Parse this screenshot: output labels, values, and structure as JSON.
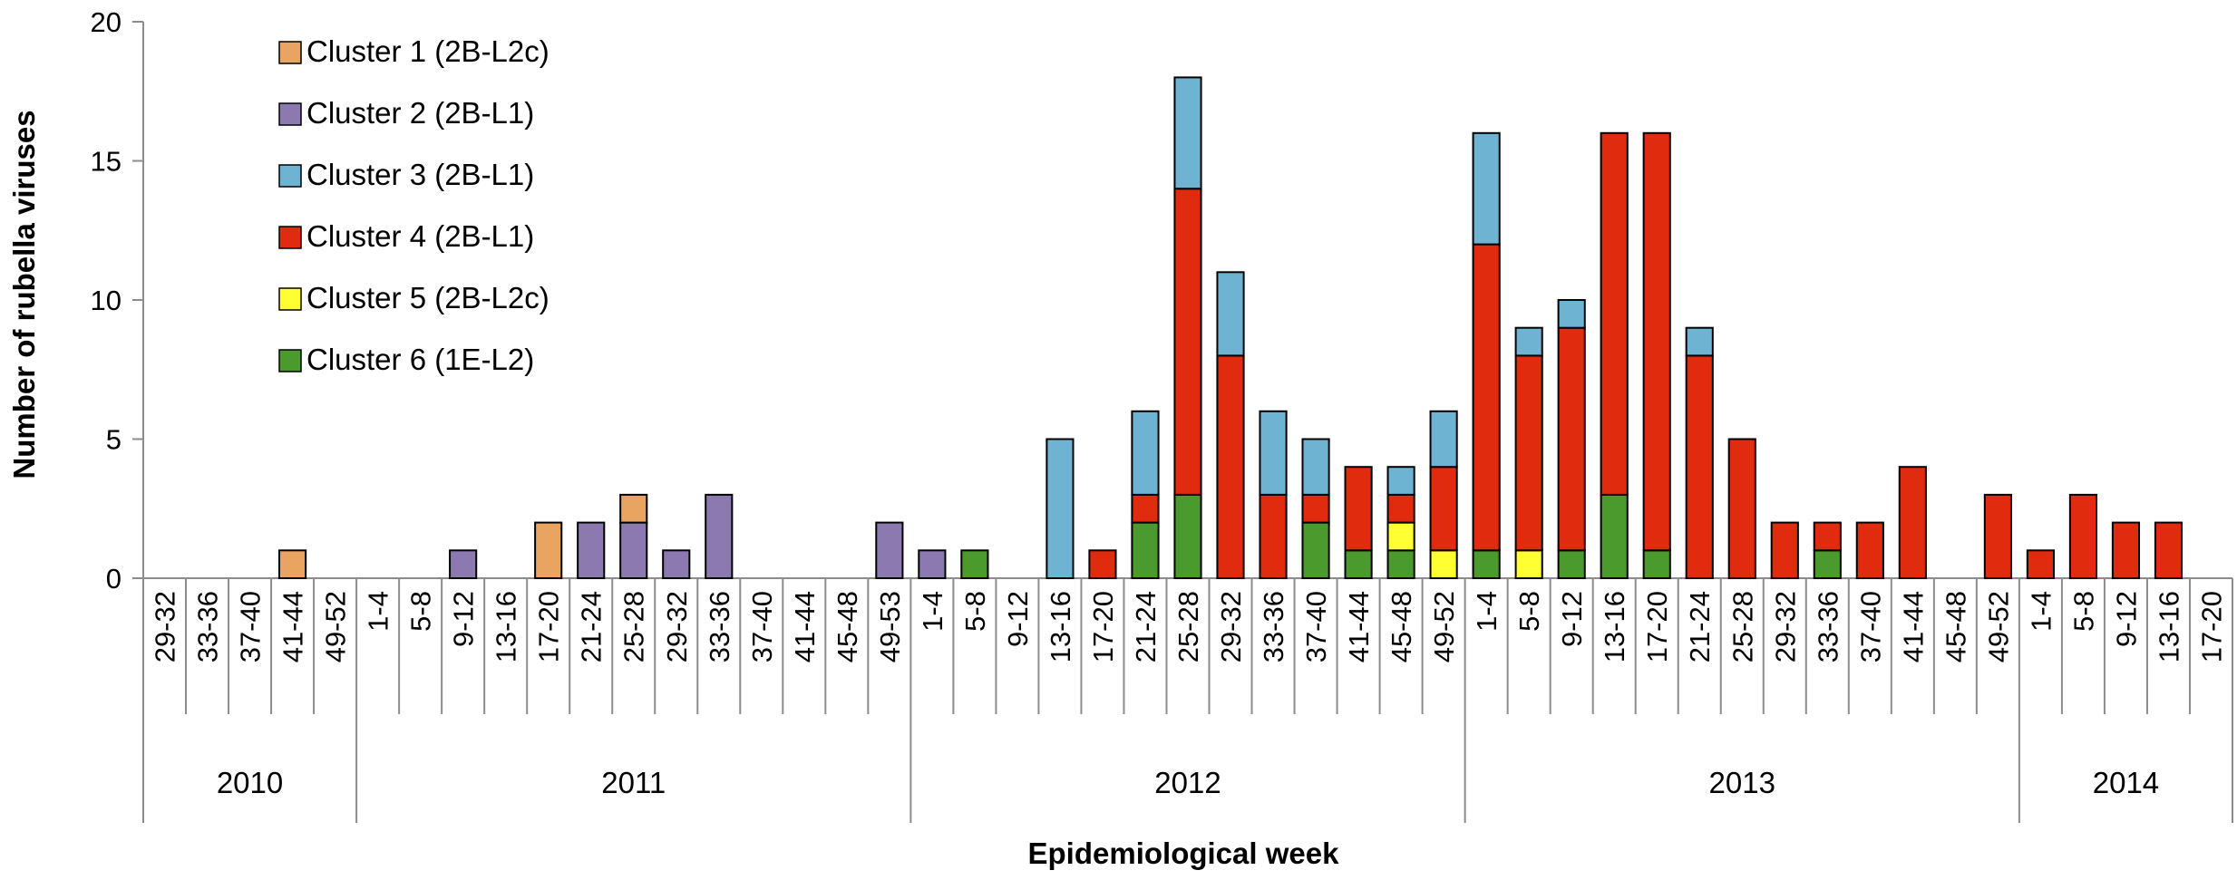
{
  "chart_data": {
    "type": "bar",
    "stacked": true,
    "title": "",
    "xlabel": "Epidemiological week",
    "ylabel": "Number of rubella viruses",
    "ylim": [
      0,
      20
    ],
    "yticks": [
      "0",
      "5",
      "10",
      "15",
      "20"
    ],
    "legend_position": "top-left",
    "categories": [
      "29-32",
      "33-36",
      "37-40",
      "41-44",
      "49-52",
      "1-4",
      "5-8",
      "9-12",
      "13-16",
      "17-20",
      "21-24",
      "25-28",
      "29-32",
      "33-36",
      "37-40",
      "41-44",
      "45-48",
      "49-53",
      "1-4",
      "5-8",
      "9-12",
      "13-16",
      "17-20",
      "21-24",
      "25-28",
      "29-32",
      "33-36",
      "37-40",
      "41-44",
      "45-48",
      "49-52",
      "1-4",
      "5-8",
      "9-12",
      "13-16",
      "17-20",
      "21-24",
      "25-28",
      "29-32",
      "33-36",
      "37-40",
      "41-44",
      "45-48",
      "49-52",
      "1-4",
      "5-8",
      "9-12",
      "13-16",
      "17-20"
    ],
    "years": [
      {
        "label": "2010",
        "start": 0,
        "count": 5
      },
      {
        "label": "2011",
        "start": 5,
        "count": 13
      },
      {
        "label": "2012",
        "start": 18,
        "count": 13
      },
      {
        "label": "2013",
        "start": 31,
        "count": 13
      },
      {
        "label": "2014",
        "start": 44,
        "count": 5
      }
    ],
    "series": [
      {
        "name": "Cluster 6 (1E-L2)",
        "color": "#4a9a2e",
        "values": [
          0,
          0,
          0,
          0,
          0,
          0,
          0,
          0,
          0,
          0,
          0,
          0,
          0,
          0,
          0,
          0,
          0,
          0,
          0,
          1,
          0,
          0,
          0,
          2,
          3,
          0,
          0,
          2,
          1,
          1,
          0,
          1,
          0,
          1,
          3,
          1,
          0,
          0,
          0,
          1,
          0,
          0,
          0,
          0,
          0,
          0,
          0,
          0,
          0
        ]
      },
      {
        "name": "Cluster 5 (2B-L2c)",
        "color": "#ffff33",
        "values": [
          0,
          0,
          0,
          0,
          0,
          0,
          0,
          0,
          0,
          0,
          0,
          0,
          0,
          0,
          0,
          0,
          0,
          0,
          0,
          0,
          0,
          0,
          0,
          0,
          0,
          0,
          0,
          0,
          0,
          1,
          1,
          0,
          1,
          0,
          0,
          0,
          0,
          0,
          0,
          0,
          0,
          0,
          0,
          0,
          0,
          0,
          0,
          0,
          0
        ]
      },
      {
        "name": "Cluster 4 (2B-L1)",
        "color": "#e02b0f",
        "values": [
          0,
          0,
          0,
          0,
          0,
          0,
          0,
          0,
          0,
          0,
          0,
          0,
          0,
          0,
          0,
          0,
          0,
          0,
          0,
          0,
          0,
          0,
          1,
          1,
          11,
          8,
          3,
          1,
          3,
          1,
          3,
          11,
          7,
          8,
          13,
          15,
          8,
          5,
          2,
          1,
          2,
          4,
          0,
          3,
          1,
          3,
          2,
          2,
          0
        ]
      },
      {
        "name": "Cluster 3 (2B-L1)",
        "color": "#6fb3d2",
        "values": [
          0,
          0,
          0,
          0,
          0,
          0,
          0,
          0,
          0,
          0,
          0,
          0,
          0,
          0,
          0,
          0,
          0,
          0,
          0,
          0,
          0,
          5,
          0,
          3,
          4,
          3,
          3,
          2,
          0,
          1,
          2,
          4,
          1,
          1,
          0,
          0,
          1,
          0,
          0,
          0,
          0,
          0,
          0,
          0,
          0,
          0,
          0,
          0,
          0
        ]
      },
      {
        "name": "Cluster 2 (2B-L1)",
        "color": "#8c79b0",
        "values": [
          0,
          0,
          0,
          0,
          0,
          0,
          0,
          1,
          0,
          0,
          2,
          2,
          1,
          3,
          0,
          0,
          0,
          2,
          1,
          0,
          0,
          0,
          0,
          0,
          0,
          0,
          0,
          0,
          0,
          0,
          0,
          0,
          0,
          0,
          0,
          0,
          0,
          0,
          0,
          0,
          0,
          0,
          0,
          0,
          0,
          0,
          0,
          0,
          0
        ]
      },
      {
        "name": "Cluster 1 (2B-L2c)",
        "color": "#e8a460",
        "values": [
          0,
          0,
          0,
          1,
          0,
          0,
          0,
          0,
          0,
          2,
          0,
          1,
          0,
          0,
          0,
          0,
          0,
          0,
          0,
          0,
          0,
          0,
          0,
          0,
          0,
          0,
          0,
          0,
          0,
          0,
          0,
          0,
          0,
          0,
          0,
          0,
          0,
          0,
          0,
          0,
          0,
          0,
          0,
          0,
          0,
          0,
          0,
          0,
          0
        ]
      }
    ],
    "legend_order": [
      "Cluster 1 (2B-L2c)",
      "Cluster 2 (2B-L1)",
      "Cluster 3 (2B-L1)",
      "Cluster 4 (2B-L1)",
      "Cluster 5 (2B-L2c)",
      "Cluster 6 (1E-L2)"
    ]
  }
}
